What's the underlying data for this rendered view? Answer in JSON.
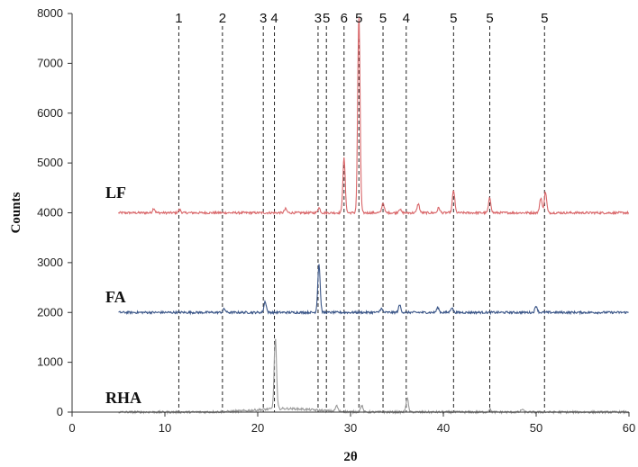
{
  "chart_data": {
    "type": "line",
    "xlabel": "2θ",
    "ylabel": "Counts",
    "xlim": [
      0,
      60
    ],
    "ylim": [
      0,
      8000
    ],
    "x_ticks": [
      0,
      10,
      20,
      30,
      40,
      50,
      60
    ],
    "y_ticks": [
      0,
      1000,
      2000,
      3000,
      4000,
      5000,
      6000,
      7000,
      8000
    ],
    "grid": false,
    "legend": "none",
    "series": [
      {
        "name": "LF",
        "color": "#d9676a",
        "baseline": 4000,
        "x_start": 5,
        "x_end": 60,
        "peaks": [
          {
            "x": 8.8,
            "y": 4090
          },
          {
            "x": 11.6,
            "y": 4060
          },
          {
            "x": 23.0,
            "y": 4080
          },
          {
            "x": 26.6,
            "y": 4100
          },
          {
            "x": 29.3,
            "y": 5100
          },
          {
            "x": 30.9,
            "y": 7950
          },
          {
            "x": 33.5,
            "y": 4200
          },
          {
            "x": 35.3,
            "y": 4080
          },
          {
            "x": 37.3,
            "y": 4180
          },
          {
            "x": 39.5,
            "y": 4100
          },
          {
            "x": 41.1,
            "y": 4450
          },
          {
            "x": 45.0,
            "y": 4300
          },
          {
            "x": 50.5,
            "y": 4300
          },
          {
            "x": 51.0,
            "y": 4420
          }
        ]
      },
      {
        "name": "FA",
        "color": "#3b5688",
        "baseline": 2000,
        "x_start": 5,
        "x_end": 60,
        "peaks": [
          {
            "x": 16.4,
            "y": 2070
          },
          {
            "x": 20.8,
            "y": 2220
          },
          {
            "x": 26.6,
            "y": 2970
          },
          {
            "x": 33.3,
            "y": 2080
          },
          {
            "x": 35.3,
            "y": 2150
          },
          {
            "x": 39.4,
            "y": 2100
          },
          {
            "x": 40.9,
            "y": 2100
          },
          {
            "x": 50.0,
            "y": 2130
          }
        ]
      },
      {
        "name": "RHA",
        "color": "#9a9a9a",
        "baseline": 0,
        "x_start": 5,
        "x_end": 60,
        "peaks": [
          {
            "x": 21.9,
            "y": 1420
          },
          {
            "x": 28.5,
            "y": 110
          },
          {
            "x": 31.2,
            "y": 130
          },
          {
            "x": 36.1,
            "y": 280
          },
          {
            "x": 45.0,
            "y": 60
          },
          {
            "x": 48.5,
            "y": 60
          }
        ]
      }
    ],
    "reference_lines": [
      {
        "x": 11.5,
        "label": "1"
      },
      {
        "x": 16.2,
        "label": "2"
      },
      {
        "x": 20.6,
        "label": "3"
      },
      {
        "x": 21.8,
        "label": "4"
      },
      {
        "x": 26.5,
        "label": "3"
      },
      {
        "x": 27.4,
        "label": "5"
      },
      {
        "x": 29.3,
        "label": "6"
      },
      {
        "x": 30.9,
        "label": "5"
      },
      {
        "x": 33.5,
        "label": "5"
      },
      {
        "x": 36.0,
        "label": "4"
      },
      {
        "x": 41.1,
        "label": "5"
      },
      {
        "x": 45.0,
        "label": "5"
      },
      {
        "x": 50.9,
        "label": "5"
      }
    ]
  }
}
